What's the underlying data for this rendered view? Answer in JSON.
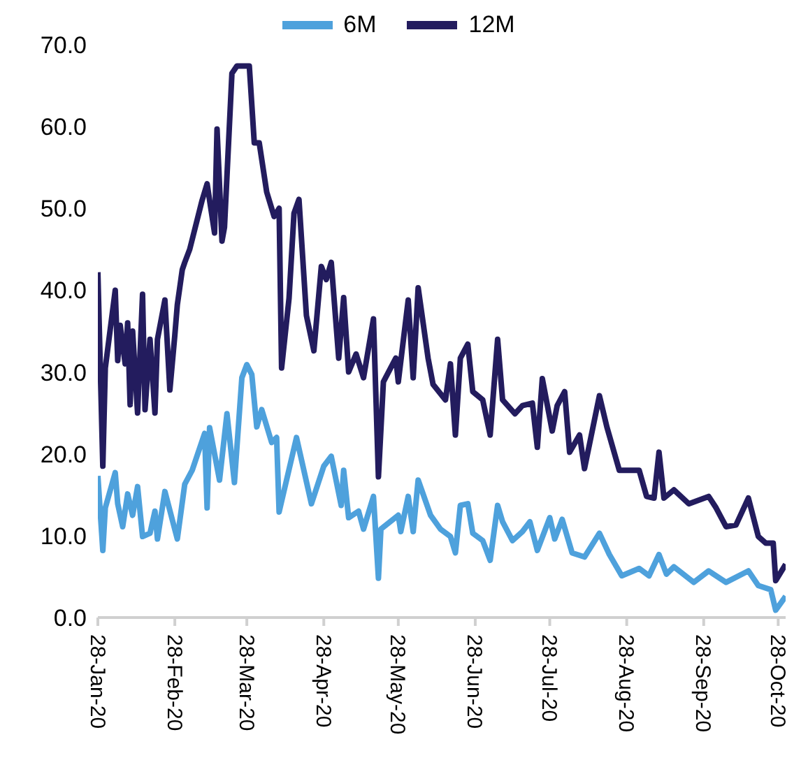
{
  "chart_data": {
    "type": "line",
    "legend": "top",
    "grid": false,
    "marker": "none",
    "line_style": "solid",
    "xlim": [
      "2020-01-28",
      "2020-10-31"
    ],
    "xticks": [
      {
        "value": "2020-01-28",
        "label": "28-Jan-20"
      },
      {
        "value": "2020-02-28",
        "label": "28-Feb-20"
      },
      {
        "value": "2020-03-28",
        "label": "28-Mar-20"
      },
      {
        "value": "2020-04-28",
        "label": "28-Apr-20"
      },
      {
        "value": "2020-05-28",
        "label": "28-May-20"
      },
      {
        "value": "2020-06-28",
        "label": "28-Jun-20"
      },
      {
        "value": "2020-07-28",
        "label": "28-Jul-20"
      },
      {
        "value": "2020-08-28",
        "label": "28-Aug-20"
      },
      {
        "value": "2020-09-28",
        "label": "28-Sep-20"
      },
      {
        "value": "2020-10-28",
        "label": "28-Oct-20"
      }
    ],
    "ylim": [
      0,
      70
    ],
    "yticks": [
      {
        "value": 0,
        "label": "0.0"
      },
      {
        "value": 10,
        "label": "10.0"
      },
      {
        "value": 20,
        "label": "20.0"
      },
      {
        "value": 30,
        "label": "30.0"
      },
      {
        "value": 40,
        "label": "40.0"
      },
      {
        "value": 50,
        "label": "50.0"
      },
      {
        "value": 60,
        "label": "60.0"
      },
      {
        "value": 70,
        "label": "70.0"
      }
    ],
    "series": [
      {
        "name": "6M",
        "color": "#4ea1dc",
        "x": [
          "2020-01-28",
          "2020-01-30",
          "2020-01-31",
          "2020-02-04",
          "2020-02-05",
          "2020-02-07",
          "2020-02-09",
          "2020-02-11",
          "2020-02-13",
          "2020-02-15",
          "2020-02-18",
          "2020-02-20",
          "2020-02-21",
          "2020-02-24",
          "2020-02-29",
          "2020-03-03",
          "2020-03-06",
          "2020-03-11",
          "2020-03-12",
          "2020-03-13",
          "2020-03-17",
          "2020-03-20",
          "2020-03-23",
          "2020-03-26",
          "2020-03-28",
          "2020-03-30",
          "2020-04-01",
          "2020-04-03",
          "2020-04-07",
          "2020-04-09",
          "2020-04-10",
          "2020-04-17",
          "2020-04-23",
          "2020-04-28",
          "2020-05-01",
          "2020-05-05",
          "2020-05-06",
          "2020-05-08",
          "2020-05-12",
          "2020-05-14",
          "2020-05-18",
          "2020-05-20",
          "2020-05-21",
          "2020-05-28",
          "2020-05-29",
          "2020-06-01",
          "2020-06-03",
          "2020-06-05",
          "2020-06-10",
          "2020-06-14",
          "2020-06-18",
          "2020-06-20",
          "2020-06-22",
          "2020-06-25",
          "2020-06-27",
          "2020-07-01",
          "2020-07-04",
          "2020-07-07",
          "2020-07-09",
          "2020-07-13",
          "2020-07-17",
          "2020-07-20",
          "2020-07-23",
          "2020-07-28",
          "2020-07-30",
          "2020-08-02",
          "2020-08-06",
          "2020-08-11",
          "2020-08-17",
          "2020-08-21",
          "2020-08-26",
          "2020-09-02",
          "2020-09-06",
          "2020-09-10",
          "2020-09-13",
          "2020-09-16",
          "2020-09-24",
          "2020-09-30",
          "2020-10-07",
          "2020-10-16",
          "2020-10-20",
          "2020-10-25",
          "2020-10-27",
          "2020-10-31"
        ],
        "values": [
          17.3,
          8.2,
          13.4,
          17.7,
          13.9,
          11.1,
          15.1,
          12.5,
          16,
          9.9,
          10.3,
          13,
          9.6,
          15.4,
          9.6,
          16.3,
          18,
          22.5,
          13.4,
          23.2,
          16.8,
          24.9,
          16.5,
          29.3,
          30.9,
          29.7,
          23.3,
          25.4,
          21.4,
          22,
          12.9,
          22,
          13.9,
          18.5,
          19.7,
          13.7,
          18,
          12.2,
          13,
          10.8,
          14.8,
          4.8,
          10.8,
          12.5,
          10.5,
          14.8,
          10.5,
          16.8,
          12.5,
          10.8,
          9.9,
          7.9,
          13.7,
          13.9,
          10.3,
          9.4,
          7,
          13.7,
          11.7,
          9.4,
          10.5,
          11.7,
          8.2,
          12.2,
          9.6,
          12,
          7.9,
          7.4,
          10.3,
          7.7,
          5.1,
          6,
          5.1,
          7.7,
          5.3,
          6.2,
          4.3,
          5.7,
          4.3,
          5.7,
          3.9,
          3.4,
          0.9,
          2.6
        ]
      },
      {
        "name": "12M",
        "color": "#231c5e",
        "x": [
          "2020-01-28",
          "2020-01-30",
          "2020-01-31",
          "2020-02-04",
          "2020-02-05",
          "2020-02-06",
          "2020-02-08",
          "2020-02-09",
          "2020-02-10",
          "2020-02-11",
          "2020-02-13",
          "2020-02-15",
          "2020-02-16",
          "2020-02-18",
          "2020-02-20",
          "2020-02-21",
          "2020-02-24",
          "2020-02-26",
          "2020-02-28",
          "2020-02-29",
          "2020-03-02",
          "2020-03-03",
          "2020-03-05",
          "2020-03-10",
          "2020-03-12",
          "2020-03-15",
          "2020-03-16",
          "2020-03-18",
          "2020-03-19",
          "2020-03-22",
          "2020-03-24",
          "2020-03-29",
          "2020-03-31",
          "2020-04-02",
          "2020-04-05",
          "2020-04-08",
          "2020-04-10",
          "2020-04-11",
          "2020-04-14",
          "2020-04-16",
          "2020-04-18",
          "2020-04-21",
          "2020-04-24",
          "2020-04-27",
          "2020-04-29",
          "2020-05-01",
          "2020-05-04",
          "2020-05-06",
          "2020-05-08",
          "2020-05-11",
          "2020-05-14",
          "2020-05-18",
          "2020-05-20",
          "2020-05-22",
          "2020-05-27",
          "2020-05-28",
          "2020-06-01",
          "2020-06-03",
          "2020-06-05",
          "2020-06-09",
          "2020-06-11",
          "2020-06-16",
          "2020-06-18",
          "2020-06-20",
          "2020-06-22",
          "2020-06-25",
          "2020-06-27",
          "2020-07-01",
          "2020-07-04",
          "2020-07-07",
          "2020-07-09",
          "2020-07-14",
          "2020-07-17",
          "2020-07-21",
          "2020-07-23",
          "2020-07-25",
          "2020-07-29",
          "2020-07-31",
          "2020-08-03",
          "2020-08-05",
          "2020-08-09",
          "2020-08-11",
          "2020-08-17",
          "2020-08-20",
          "2020-08-25",
          "2020-09-02",
          "2020-09-05",
          "2020-09-08",
          "2020-09-10",
          "2020-09-12",
          "2020-09-16",
          "2020-09-22",
          "2020-09-30",
          "2020-10-03",
          "2020-10-07",
          "2020-10-11",
          "2020-10-16",
          "2020-10-20",
          "2020-10-23",
          "2020-10-26",
          "2020-10-27",
          "2020-10-31"
        ],
        "values": [
          42.2,
          18.5,
          30.5,
          40,
          31.4,
          35.7,
          31,
          36,
          26,
          35,
          25,
          39.5,
          25.4,
          34,
          25,
          34,
          38.8,
          27.8,
          34.5,
          38.2,
          42.5,
          43.4,
          45,
          51,
          53,
          47,
          59.7,
          46,
          47.7,
          66.5,
          67.4,
          67.4,
          58,
          58,
          52,
          49,
          50,
          30.5,
          39,
          49.4,
          51.1,
          36.9,
          32.6,
          42.9,
          41.3,
          43.4,
          31.7,
          39.1,
          30,
          32.2,
          29.3,
          36.5,
          17.2,
          28.8,
          31.7,
          28.8,
          38.8,
          29.3,
          40.3,
          31.7,
          28.5,
          26.6,
          31,
          22.3,
          31.7,
          33.4,
          27.6,
          26.6,
          22.3,
          34,
          26.6,
          24.9,
          25.9,
          26.2,
          20.8,
          29.2,
          22.8,
          25.9,
          27.6,
          20.2,
          22.3,
          18.2,
          27.1,
          23.3,
          18,
          18,
          14.8,
          14.6,
          20.2,
          14.6,
          15.6,
          13.9,
          14.8,
          13.4,
          11.1,
          11.3,
          14.6,
          9.9,
          9.1,
          9.1,
          4.5,
          6.5
        ]
      }
    ]
  }
}
